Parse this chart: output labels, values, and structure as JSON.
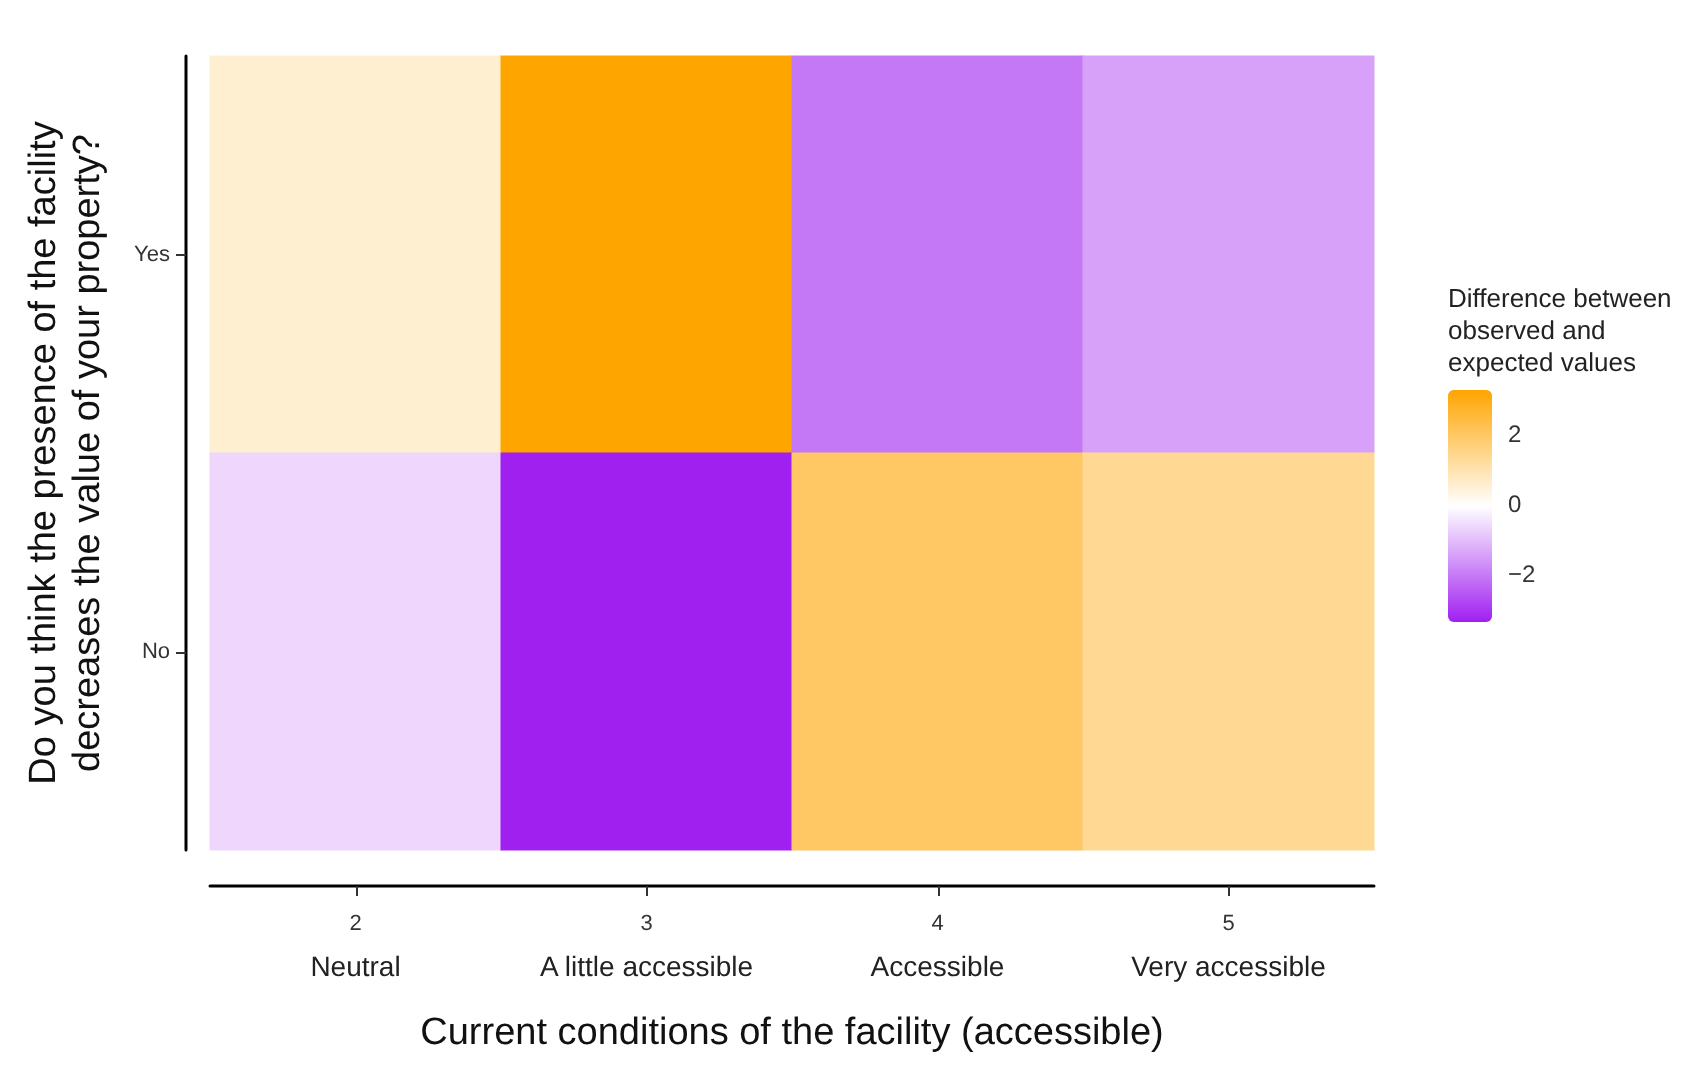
{
  "chart_data": {
    "type": "heatmap",
    "xlabel": "Current conditions of the facility (accessible)",
    "ylabel": "Do you think the presence of the facility decreases the value of your property?",
    "legend_title": "Difference between observed and expected values",
    "categories": [
      "2\nNeutral",
      "3\nA little accessible",
      "4\nAccessible",
      "5\nVery accessible"
    ],
    "y_categories": [
      "Yes",
      "No"
    ],
    "cells": [
      [
        0.6,
        3.3,
        -2.0,
        -1.4
      ],
      [
        -0.6,
        -3.3,
        2.0,
        1.4
      ]
    ],
    "clim": [
      -3.3,
      3.3
    ],
    "cticks": [
      -2,
      0,
      2
    ],
    "colors": [
      "#a020f0",
      "#ffffff",
      "#ffa500"
    ],
    "grid": false
  }
}
